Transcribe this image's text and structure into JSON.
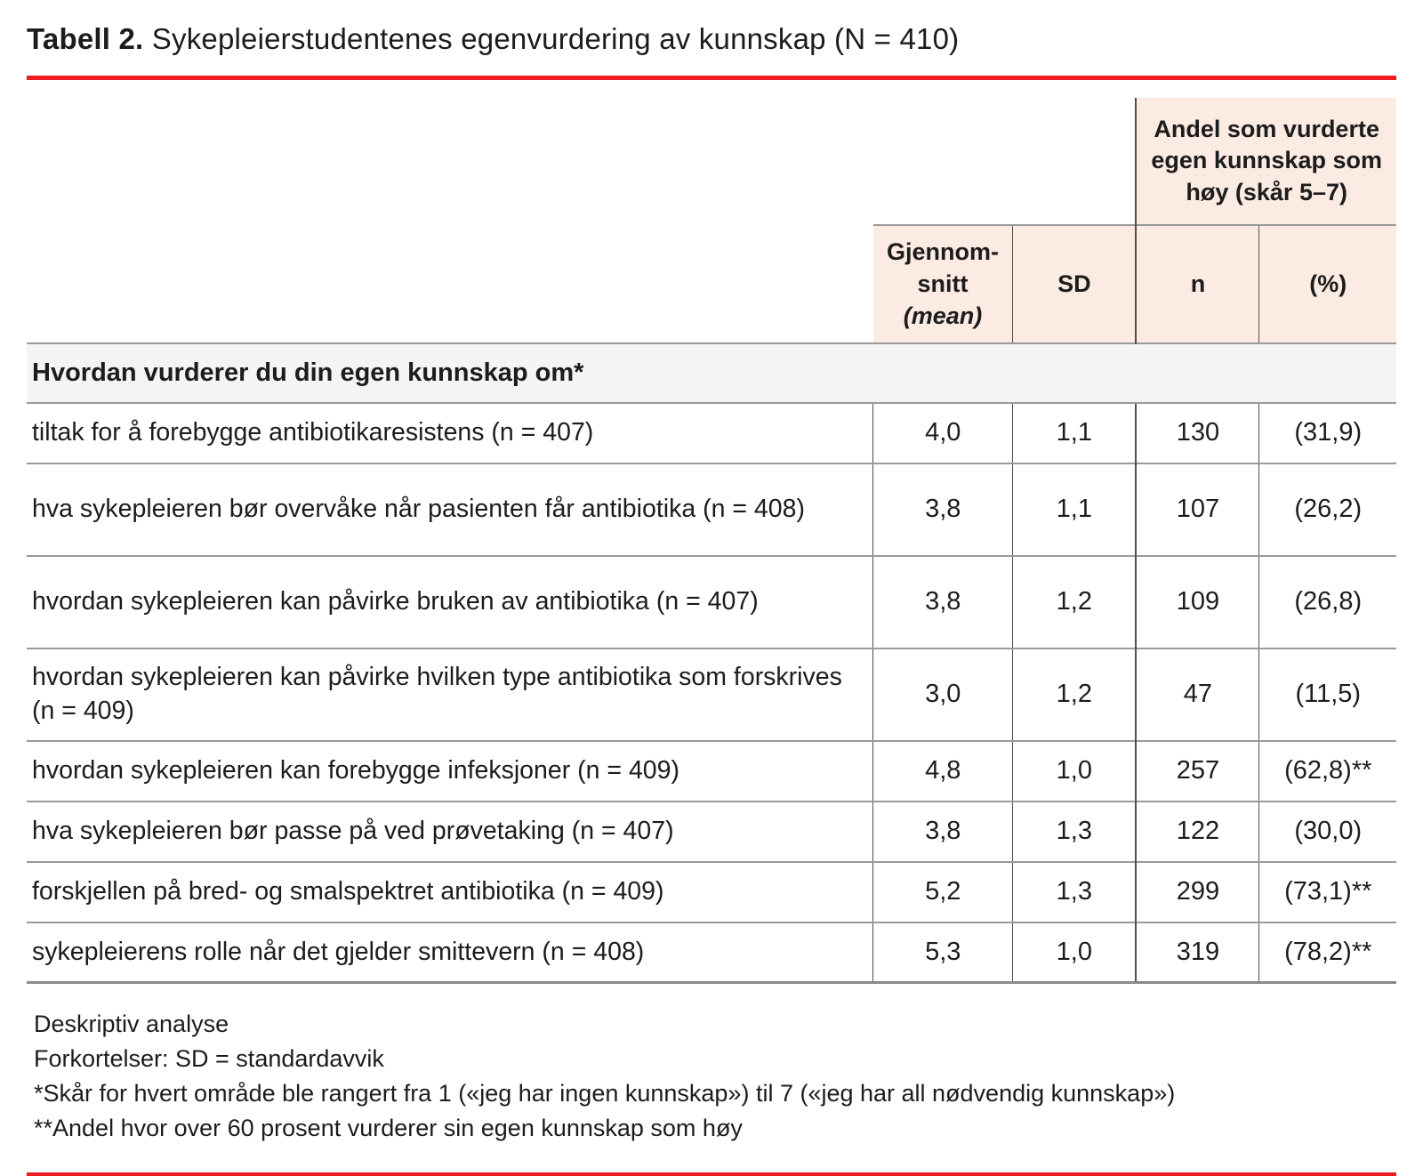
{
  "title": {
    "label": "Tabell 2.",
    "text": "Sykepleierstudentenes egenvurdering av kunnskap (N = 410)"
  },
  "colors": {
    "accent_red": "#ed1b24",
    "header_pink": "#fcebe3",
    "section_gray": "#f4f4f3"
  },
  "table": {
    "group_header": "Andel som vurderte egen kunnskap som høy (skår 5–7)",
    "col_headers": {
      "mean_line1": "Gjennom-",
      "mean_line2": "snitt",
      "mean_line3": "(mean)",
      "sd": "SD",
      "n": "n",
      "pct": "(%)"
    },
    "section_header": "Hvordan vurderer du din egen kunnskap om*",
    "rows": [
      {
        "label": "tiltak for å forebygge antibiotikaresistens (n = 407)",
        "mean": "4,0",
        "sd": "1,1",
        "n": "130",
        "pct": "(31,9)"
      },
      {
        "label": "hva sykepleieren bør overvåke når pasienten får antibiotika (n = 408)",
        "mean": "3,8",
        "sd": "1,1",
        "n": "107",
        "pct": "(26,2)"
      },
      {
        "label": "hvordan sykepleieren kan påvirke bruken av antibiotika (n = 407)",
        "mean": "3,8",
        "sd": "1,2",
        "n": "109",
        "pct": "(26,8)"
      },
      {
        "label": "hvordan sykepleieren kan påvirke hvilken type antibiotika som forskrives (n = 409)",
        "mean": "3,0",
        "sd": "1,2",
        "n": "47",
        "pct": "(11,5)"
      },
      {
        "label": "hvordan sykepleieren kan forebygge infeksjoner (n = 409)",
        "mean": "4,8",
        "sd": "1,0",
        "n": "257",
        "pct": "(62,8)**"
      },
      {
        "label": "hva sykepleieren bør passe på ved prøvetaking (n = 407)",
        "mean": "3,8",
        "sd": "1,3",
        "n": "122",
        "pct": "(30,0)"
      },
      {
        "label": "forskjellen på bred- og smalspektret antibiotika (n = 409)",
        "mean": "5,2",
        "sd": "1,3",
        "n": "299",
        "pct": "(73,1)**"
      },
      {
        "label": "sykepleierens rolle når det gjelder smittevern (n = 408)",
        "mean": "5,3",
        "sd": "1,0",
        "n": "319",
        "pct": "(78,2)**"
      }
    ],
    "footnotes": [
      "Deskriptiv analyse",
      "Forkortelser: SD = standardavvik",
      "*Skår for hvert område ble rangert fra 1 («jeg har ingen kunnskap») til 7 («jeg har all nødvendig kunnskap»)",
      "**Andel hvor over 60 prosent vurderer sin egen kunnskap som høy"
    ]
  }
}
